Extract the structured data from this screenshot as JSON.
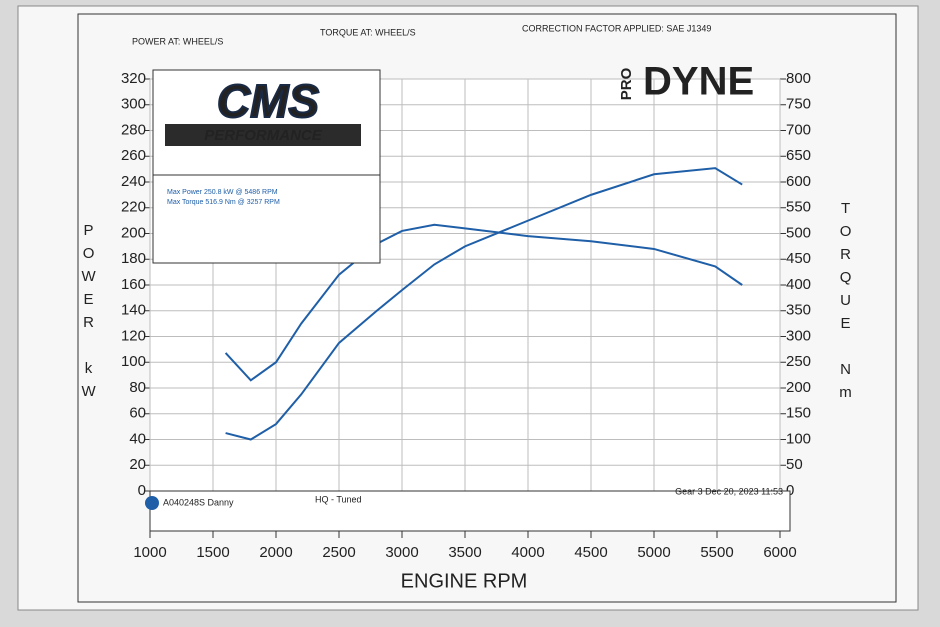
{
  "chart_data": {
    "type": "line",
    "subtitles": [
      "POWER AT: WHEEL/S",
      "TORQUE AT: WHEEL/S",
      "CORRECTION FACTOR APPLIED: SAE J1349"
    ],
    "logo": [
      "CMS",
      "PERFORMANCE",
      "PRO",
      "DYNE"
    ],
    "annotations": [
      "Max Power 250.8 kW @ 5486 RPM",
      "Max Torque 516.9 Nm @ 3257 RPM"
    ],
    "footer": [
      "A040248S Danny",
      "HQ - Tuned",
      "Gear 3 Dec 20, 2023 11:53"
    ],
    "xlabel": "ENGINE RPM",
    "ylabel": "POWER kW",
    "y2label": "TORQUE Nm",
    "x": [
      1600,
      1800,
      2000,
      2200,
      2500,
      2800,
      3000,
      3257,
      3500,
      4000,
      4500,
      5000,
      5486,
      5700
    ],
    "series": [
      {
        "color": "#1f5fa8",
        "values": [
          45,
          40,
          52,
          75,
          115,
          140,
          156,
          176,
          190,
          210,
          230,
          246,
          250.8,
          238
        ]
      },
      {
        "color": "#1f5fa8",
        "axis": "y2",
        "values": [
          268,
          215,
          250,
          325,
          420,
          480,
          505,
          516.9,
          510,
          495,
          485,
          470,
          436,
          400
        ]
      }
    ],
    "xlim": [
      1000,
      6000
    ],
    "xticks": [
      1000,
      1500,
      2000,
      2500,
      3000,
      3500,
      4000,
      4500,
      5000,
      5500,
      6000
    ],
    "ylim": [
      0,
      320
    ],
    "yticks": [
      0,
      20,
      40,
      60,
      80,
      100,
      120,
      140,
      160,
      180,
      200,
      220,
      240,
      260,
      280,
      300,
      320
    ],
    "y2lim": [
      0,
      800
    ],
    "y2ticks": [
      0,
      50,
      100,
      150,
      200,
      250,
      300,
      350,
      400,
      450,
      500,
      550,
      600,
      650,
      700,
      750,
      800
    ],
    "grid": true
  }
}
